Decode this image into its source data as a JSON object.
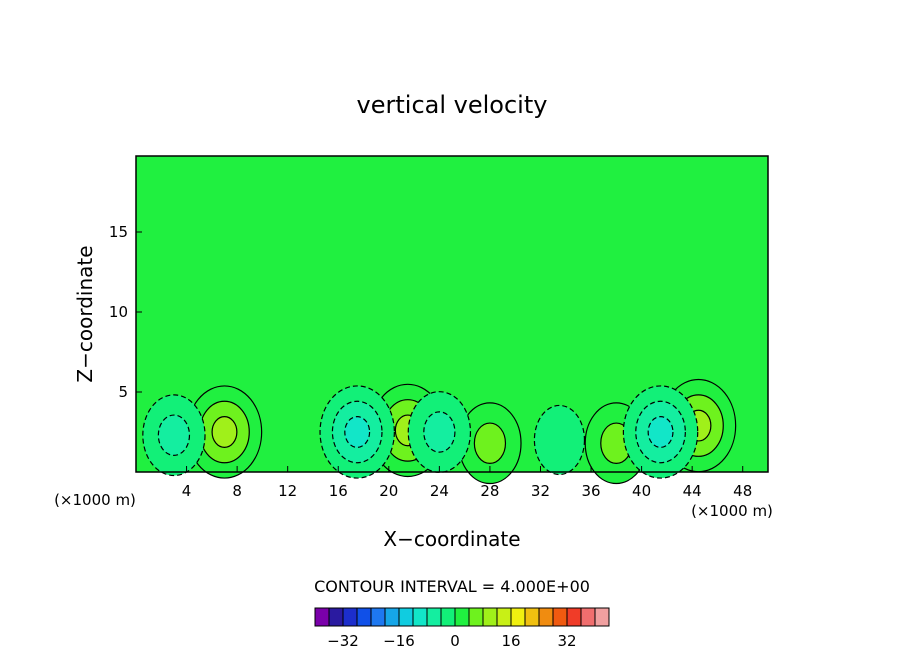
{
  "chart_data": {
    "type": "heatmap",
    "title": "vertical velocity",
    "xlabel": "X−coordinate",
    "ylabel": "Z−coordinate",
    "x_unit_label": "(×1000 m)",
    "y_unit_label": "(×1000 m)",
    "xlim": [
      0,
      50
    ],
    "ylim": [
      0,
      19.75
    ],
    "x_ticks": [
      4,
      8,
      12,
      16,
      20,
      24,
      28,
      32,
      36,
      40,
      44,
      48
    ],
    "x_tick_labels": [
      "4",
      "8",
      "12",
      "16",
      "20",
      "24",
      "28",
      "32",
      "36",
      "40",
      "44",
      "48"
    ],
    "y_ticks": [
      5,
      10,
      15
    ],
    "y_tick_labels": [
      "5",
      "10",
      "15"
    ],
    "contour_interval_text": "CONTOUR INTERVAL = 4.000E+00",
    "contour_interval": 4.0,
    "colorbar": {
      "levels": [
        -40,
        -36,
        -32,
        -28,
        -24,
        -20,
        -16,
        -12,
        -8,
        -4,
        0,
        4,
        8,
        12,
        16,
        20,
        24,
        28,
        32,
        36,
        40
      ],
      "colors": [
        "#7a00aa",
        "#2a1aa0",
        "#1c2ecc",
        "#1050e8",
        "#1e78f0",
        "#16a6e8",
        "#10cce0",
        "#12e6c8",
        "#14eea0",
        "#12f078",
        "#20f040",
        "#6ef21e",
        "#a0f01a",
        "#c8f016",
        "#f0f010",
        "#f0c010",
        "#f08c10",
        "#f05a10",
        "#f03c28",
        "#f06e6e",
        "#f0a0a0"
      ],
      "tick_values": [
        -32,
        -16,
        0,
        16,
        32
      ],
      "tick_labels": [
        "−32",
        "−16",
        "0",
        "16",
        "32"
      ]
    },
    "features": [
      {
        "kind": "updraft",
        "x": 7,
        "z": 2.5,
        "max": 12
      },
      {
        "kind": "updraft",
        "x": 21.5,
        "z": 2.6,
        "max": 12
      },
      {
        "kind": "updraft",
        "x": 44.5,
        "z": 2.9,
        "max": 12
      },
      {
        "kind": "updraft",
        "x": 28,
        "z": 1.8,
        "max": 8
      },
      {
        "kind": "updraft",
        "x": 38,
        "z": 1.8,
        "max": 8
      },
      {
        "kind": "downdraft",
        "x": 3,
        "z": 2.3,
        "min": -8
      },
      {
        "kind": "downdraft",
        "x": 17.5,
        "z": 2.5,
        "min": -12
      },
      {
        "kind": "downdraft",
        "x": 24,
        "z": 2.5,
        "min": -8
      },
      {
        "kind": "downdraft",
        "x": 33.5,
        "z": 2.0,
        "min": -4
      },
      {
        "kind": "downdraft",
        "x": 41.5,
        "z": 2.5,
        "min": -12
      }
    ],
    "grid": false,
    "legend": "bottom-center"
  }
}
